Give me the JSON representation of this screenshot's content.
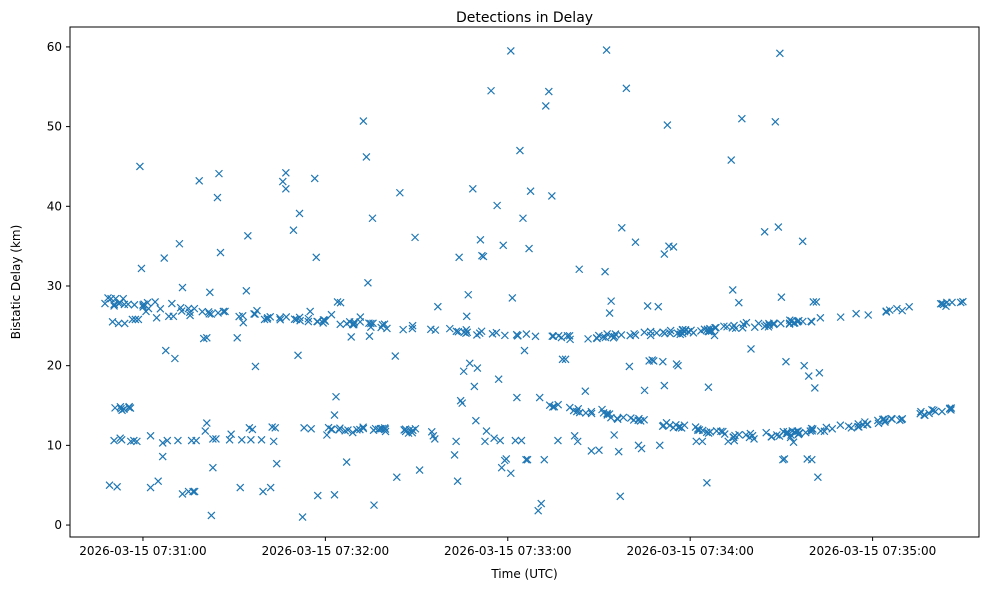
{
  "chart_data": {
    "type": "scatter",
    "title": "Detections in Delay",
    "xlabel": "Time (UTC)",
    "ylabel": "Bistatic Delay (km)",
    "marker": "x",
    "color": "#1f77b4",
    "x_unit": "seconds after 2026-03-15 07:30:00",
    "xlim": [
      36,
      335
    ],
    "ylim": [
      -1.5,
      62.5
    ],
    "x_ticks": [
      {
        "value": 60,
        "label": "2026-03-15 07:31:00"
      },
      {
        "value": 120,
        "label": "2026-03-15 07:32:00"
      },
      {
        "value": 180,
        "label": "2026-03-15 07:33:00"
      },
      {
        "value": 240,
        "label": "2026-03-15 07:34:00"
      },
      {
        "value": 300,
        "label": "2026-03-15 07:35:00"
      }
    ],
    "y_ticks": [
      {
        "value": 0,
        "label": "0"
      },
      {
        "value": 10,
        "label": "10"
      },
      {
        "value": 20,
        "label": "20"
      },
      {
        "value": 30,
        "label": "30"
      },
      {
        "value": 40,
        "label": "40"
      },
      {
        "value": 50,
        "label": "50"
      },
      {
        "value": 60,
        "label": "60"
      }
    ],
    "tracks": [
      {
        "name": "upper-track",
        "x_start": 48,
        "x_end": 331,
        "y_start": 27.9,
        "y_end": 28.1,
        "y_min": 23.5,
        "x_min": 193,
        "count": 170
      },
      {
        "name": "lower-track",
        "x_start": 193,
        "x_end": 331,
        "y_start": 15.2,
        "y_end": 15.1,
        "y_min": 11.2,
        "x_min": 256,
        "count": 110
      },
      {
        "name": "low-flat-track",
        "x_start": 115,
        "x_end": 150,
        "y_start": 12.2,
        "y_end": 11.8,
        "y_min": 11.8,
        "x_min": 150,
        "count": 26
      },
      {
        "name": "early-band",
        "x_start": 50,
        "x_end": 56,
        "y_start": 14.6,
        "y_end": 14.6,
        "y_min": 14.6,
        "x_min": 56,
        "count": 8
      }
    ],
    "points": [
      [
        47.5,
        27.8
      ],
      [
        48.5,
        28.5
      ],
      [
        49.5,
        28.4
      ],
      [
        50.0,
        25.5
      ],
      [
        50.5,
        27.5
      ],
      [
        51.0,
        28.4
      ],
      [
        52.0,
        25.3
      ],
      [
        52.5,
        27.9
      ],
      [
        53.5,
        28.4
      ],
      [
        54.0,
        25.3
      ],
      [
        49.0,
        5.0
      ],
      [
        51.5,
        4.8
      ],
      [
        50.5,
        10.6
      ],
      [
        52.5,
        10.9
      ],
      [
        53.0,
        10.7
      ],
      [
        56.0,
        10.5
      ],
      [
        57.0,
        10.6
      ],
      [
        58.0,
        10.5
      ],
      [
        56.5,
        25.8
      ],
      [
        57.5,
        25.8
      ],
      [
        58.5,
        25.8
      ],
      [
        59.0,
        45.0
      ],
      [
        59.5,
        32.2
      ],
      [
        60.0,
        27.6
      ],
      [
        61.0,
        26.8
      ],
      [
        61.5,
        27.9
      ],
      [
        62.5,
        11.2
      ],
      [
        62.5,
        4.7
      ],
      [
        64.0,
        28.0
      ],
      [
        64.5,
        26.0
      ],
      [
        65.0,
        5.5
      ],
      [
        66.5,
        8.6
      ],
      [
        66.5,
        10.3
      ],
      [
        67.0,
        33.5
      ],
      [
        67.5,
        21.9
      ],
      [
        68.0,
        10.6
      ],
      [
        68.5,
        26.2
      ],
      [
        69.5,
        27.8
      ],
      [
        70.0,
        26.2
      ],
      [
        70.5,
        20.9
      ],
      [
        71.5,
        10.6
      ],
      [
        72.0,
        35.3
      ],
      [
        73.0,
        29.8
      ],
      [
        73.0,
        3.9
      ],
      [
        75.0,
        4.2
      ],
      [
        75.5,
        26.3
      ],
      [
        76.0,
        10.6
      ],
      [
        76.5,
        4.2
      ],
      [
        77.0,
        4.2
      ],
      [
        77.5,
        10.6
      ],
      [
        78.5,
        43.2
      ],
      [
        80.0,
        23.4
      ],
      [
        80.5,
        11.8
      ],
      [
        81.0,
        23.5
      ],
      [
        81.0,
        12.8
      ],
      [
        82.0,
        29.2
      ],
      [
        82.5,
        1.2
      ],
      [
        83.0,
        10.8
      ],
      [
        83.0,
        7.2
      ],
      [
        84.0,
        10.8
      ],
      [
        84.5,
        41.1
      ],
      [
        85.0,
        44.1
      ],
      [
        85.5,
        34.2
      ],
      [
        87.0,
        26.8
      ],
      [
        88.5,
        10.7
      ],
      [
        89.0,
        11.4
      ],
      [
        91.0,
        23.5
      ],
      [
        92.0,
        4.7
      ],
      [
        92.5,
        10.7
      ],
      [
        93.0,
        25.4
      ],
      [
        94.0,
        29.4
      ],
      [
        94.5,
        36.3
      ],
      [
        95.0,
        12.2
      ],
      [
        95.5,
        10.7
      ],
      [
        96.0,
        12.0
      ],
      [
        97.0,
        19.9
      ],
      [
        97.5,
        26.9
      ],
      [
        99.0,
        10.7
      ],
      [
        99.5,
        4.2
      ],
      [
        100.0,
        25.8
      ],
      [
        101.0,
        26.0
      ],
      [
        102.0,
        4.7
      ],
      [
        102.5,
        12.3
      ],
      [
        103.0,
        10.5
      ],
      [
        103.5,
        12.2
      ],
      [
        104.0,
        7.7
      ],
      [
        106.0,
        43.1
      ],
      [
        107.0,
        44.2
      ],
      [
        107.0,
        42.2
      ],
      [
        109.5,
        37.0
      ],
      [
        110.5,
        25.8
      ],
      [
        111.0,
        21.3
      ],
      [
        111.5,
        39.1
      ],
      [
        112.5,
        1.0
      ],
      [
        113.0,
        12.2
      ],
      [
        115.0,
        26.8
      ],
      [
        116.5,
        43.5
      ],
      [
        117.0,
        33.6
      ],
      [
        117.5,
        3.7
      ],
      [
        120.5,
        11.3
      ],
      [
        122.0,
        26.4
      ],
      [
        123.0,
        13.8
      ],
      [
        123.5,
        16.1
      ],
      [
        123.0,
        3.8
      ],
      [
        124.0,
        28.0
      ],
      [
        125.0,
        27.9
      ],
      [
        127.0,
        7.9
      ],
      [
        128.5,
        23.6
      ],
      [
        129.0,
        11.6
      ],
      [
        131.5,
        26.1
      ],
      [
        132.5,
        50.7
      ],
      [
        133.5,
        46.2
      ],
      [
        134.0,
        30.4
      ],
      [
        134.5,
        23.7
      ],
      [
        135.5,
        38.5
      ],
      [
        136.0,
        2.5
      ],
      [
        136.5,
        12.1
      ],
      [
        137.5,
        12.0
      ],
      [
        143.0,
        21.2
      ],
      [
        143.5,
        6.0
      ],
      [
        144.5,
        41.7
      ],
      [
        149.5,
        36.1
      ],
      [
        151.0,
        6.9
      ],
      [
        155.0,
        11.7
      ],
      [
        155.5,
        11.2
      ],
      [
        156.0,
        10.8
      ],
      [
        157.0,
        27.4
      ],
      [
        162.5,
        8.8
      ],
      [
        163.0,
        10.5
      ],
      [
        163.5,
        5.5
      ],
      [
        164.0,
        33.6
      ],
      [
        164.5,
        15.6
      ],
      [
        165.0,
        15.3
      ],
      [
        165.5,
        19.3
      ],
      [
        166.5,
        26.2
      ],
      [
        167.0,
        28.9
      ],
      [
        167.5,
        20.3
      ],
      [
        168.5,
        42.2
      ],
      [
        169.0,
        17.4
      ],
      [
        169.5,
        13.1
      ],
      [
        170.0,
        19.7
      ],
      [
        171.0,
        35.8
      ],
      [
        171.5,
        33.8
      ],
      [
        172.0,
        33.7
      ],
      [
        172.5,
        10.5
      ],
      [
        173.0,
        11.8
      ],
      [
        174.5,
        54.5
      ],
      [
        175.5,
        10.9
      ],
      [
        176.5,
        40.1
      ],
      [
        177.0,
        18.3
      ],
      [
        177.5,
        10.6
      ],
      [
        178.0,
        7.2
      ],
      [
        178.5,
        35.1
      ],
      [
        179.0,
        8.1
      ],
      [
        179.5,
        8.3
      ],
      [
        181.0,
        59.5
      ],
      [
        181.0,
        6.5
      ],
      [
        181.5,
        28.5
      ],
      [
        182.5,
        10.6
      ],
      [
        183.0,
        16.0
      ],
      [
        184.0,
        47.0
      ],
      [
        184.5,
        10.6
      ],
      [
        185.0,
        38.5
      ],
      [
        185.5,
        21.9
      ],
      [
        186.0,
        8.2
      ],
      [
        186.5,
        8.2
      ],
      [
        187.0,
        34.7
      ],
      [
        187.5,
        41.9
      ],
      [
        190.0,
        1.8
      ],
      [
        190.5,
        16.0
      ],
      [
        191.0,
        2.7
      ],
      [
        192.0,
        8.2
      ],
      [
        192.5,
        52.6
      ],
      [
        193.5,
        54.4
      ],
      [
        194.5,
        41.3
      ],
      [
        195.0,
        23.7
      ],
      [
        196.5,
        10.6
      ],
      [
        198.0,
        20.8
      ],
      [
        199.0,
        20.8
      ],
      [
        200.5,
        23.3
      ],
      [
        202.0,
        11.2
      ],
      [
        203.0,
        10.5
      ],
      [
        203.5,
        32.1
      ],
      [
        205.5,
        16.8
      ],
      [
        207.5,
        9.3
      ],
      [
        210.0,
        9.4
      ],
      [
        211.0,
        14.5
      ],
      [
        212.0,
        31.8
      ],
      [
        212.5,
        59.6
      ],
      [
        213.5,
        26.6
      ],
      [
        214.0,
        28.1
      ],
      [
        215.0,
        11.3
      ],
      [
        216.5,
        9.2
      ],
      [
        217.0,
        3.6
      ],
      [
        217.5,
        37.3
      ],
      [
        219.0,
        54.8
      ],
      [
        220.0,
        19.9
      ],
      [
        222.0,
        35.5
      ],
      [
        223.0,
        10.0
      ],
      [
        224.0,
        9.6
      ],
      [
        225.0,
        16.9
      ],
      [
        226.0,
        27.5
      ],
      [
        226.5,
        20.6
      ],
      [
        227.0,
        23.8
      ],
      [
        227.5,
        20.7
      ],
      [
        228.0,
        20.6
      ],
      [
        229.5,
        27.4
      ],
      [
        230.0,
        10.0
      ],
      [
        231.0,
        20.5
      ],
      [
        231.5,
        17.5
      ],
      [
        231.5,
        34.0
      ],
      [
        232.5,
        50.2
      ],
      [
        233.0,
        35.0
      ],
      [
        234.5,
        34.9
      ],
      [
        235.5,
        20.2
      ],
      [
        236.0,
        20.0
      ],
      [
        242.0,
        10.5
      ],
      [
        244.0,
        10.5
      ],
      [
        245.5,
        5.3
      ],
      [
        246.0,
        17.3
      ],
      [
        248.0,
        23.8
      ],
      [
        252.5,
        10.5
      ],
      [
        253.5,
        45.8
      ],
      [
        254.0,
        29.5
      ],
      [
        254.5,
        10.6
      ],
      [
        256.0,
        27.9
      ],
      [
        257.0,
        51.0
      ],
      [
        257.5,
        25.2
      ],
      [
        258.5,
        25.4
      ],
      [
        259.5,
        11.0
      ],
      [
        260.0,
        22.1
      ],
      [
        261.0,
        10.8
      ],
      [
        262.5,
        25.3
      ],
      [
        264.5,
        36.8
      ],
      [
        265.0,
        25.1
      ],
      [
        266.0,
        25.1
      ],
      [
        268.0,
        50.6
      ],
      [
        268.5,
        11.3
      ],
      [
        269.0,
        37.4
      ],
      [
        269.5,
        59.2
      ],
      [
        270.0,
        28.6
      ],
      [
        270.5,
        8.2
      ],
      [
        271.0,
        8.3
      ],
      [
        271.5,
        20.5
      ],
      [
        272.0,
        11.5
      ],
      [
        273.0,
        11.0
      ],
      [
        274.0,
        10.4
      ],
      [
        275.5,
        11.8
      ],
      [
        277.0,
        35.6
      ],
      [
        277.5,
        20.0
      ],
      [
        278.0,
        11.6
      ],
      [
        278.5,
        8.3
      ],
      [
        279.0,
        18.7
      ],
      [
        279.5,
        11.8
      ],
      [
        280.0,
        8.2
      ],
      [
        280.5,
        28.0
      ],
      [
        281.0,
        17.2
      ],
      [
        281.5,
        28.0
      ],
      [
        282.0,
        6.0
      ],
      [
        282.5,
        19.1
      ]
    ]
  }
}
